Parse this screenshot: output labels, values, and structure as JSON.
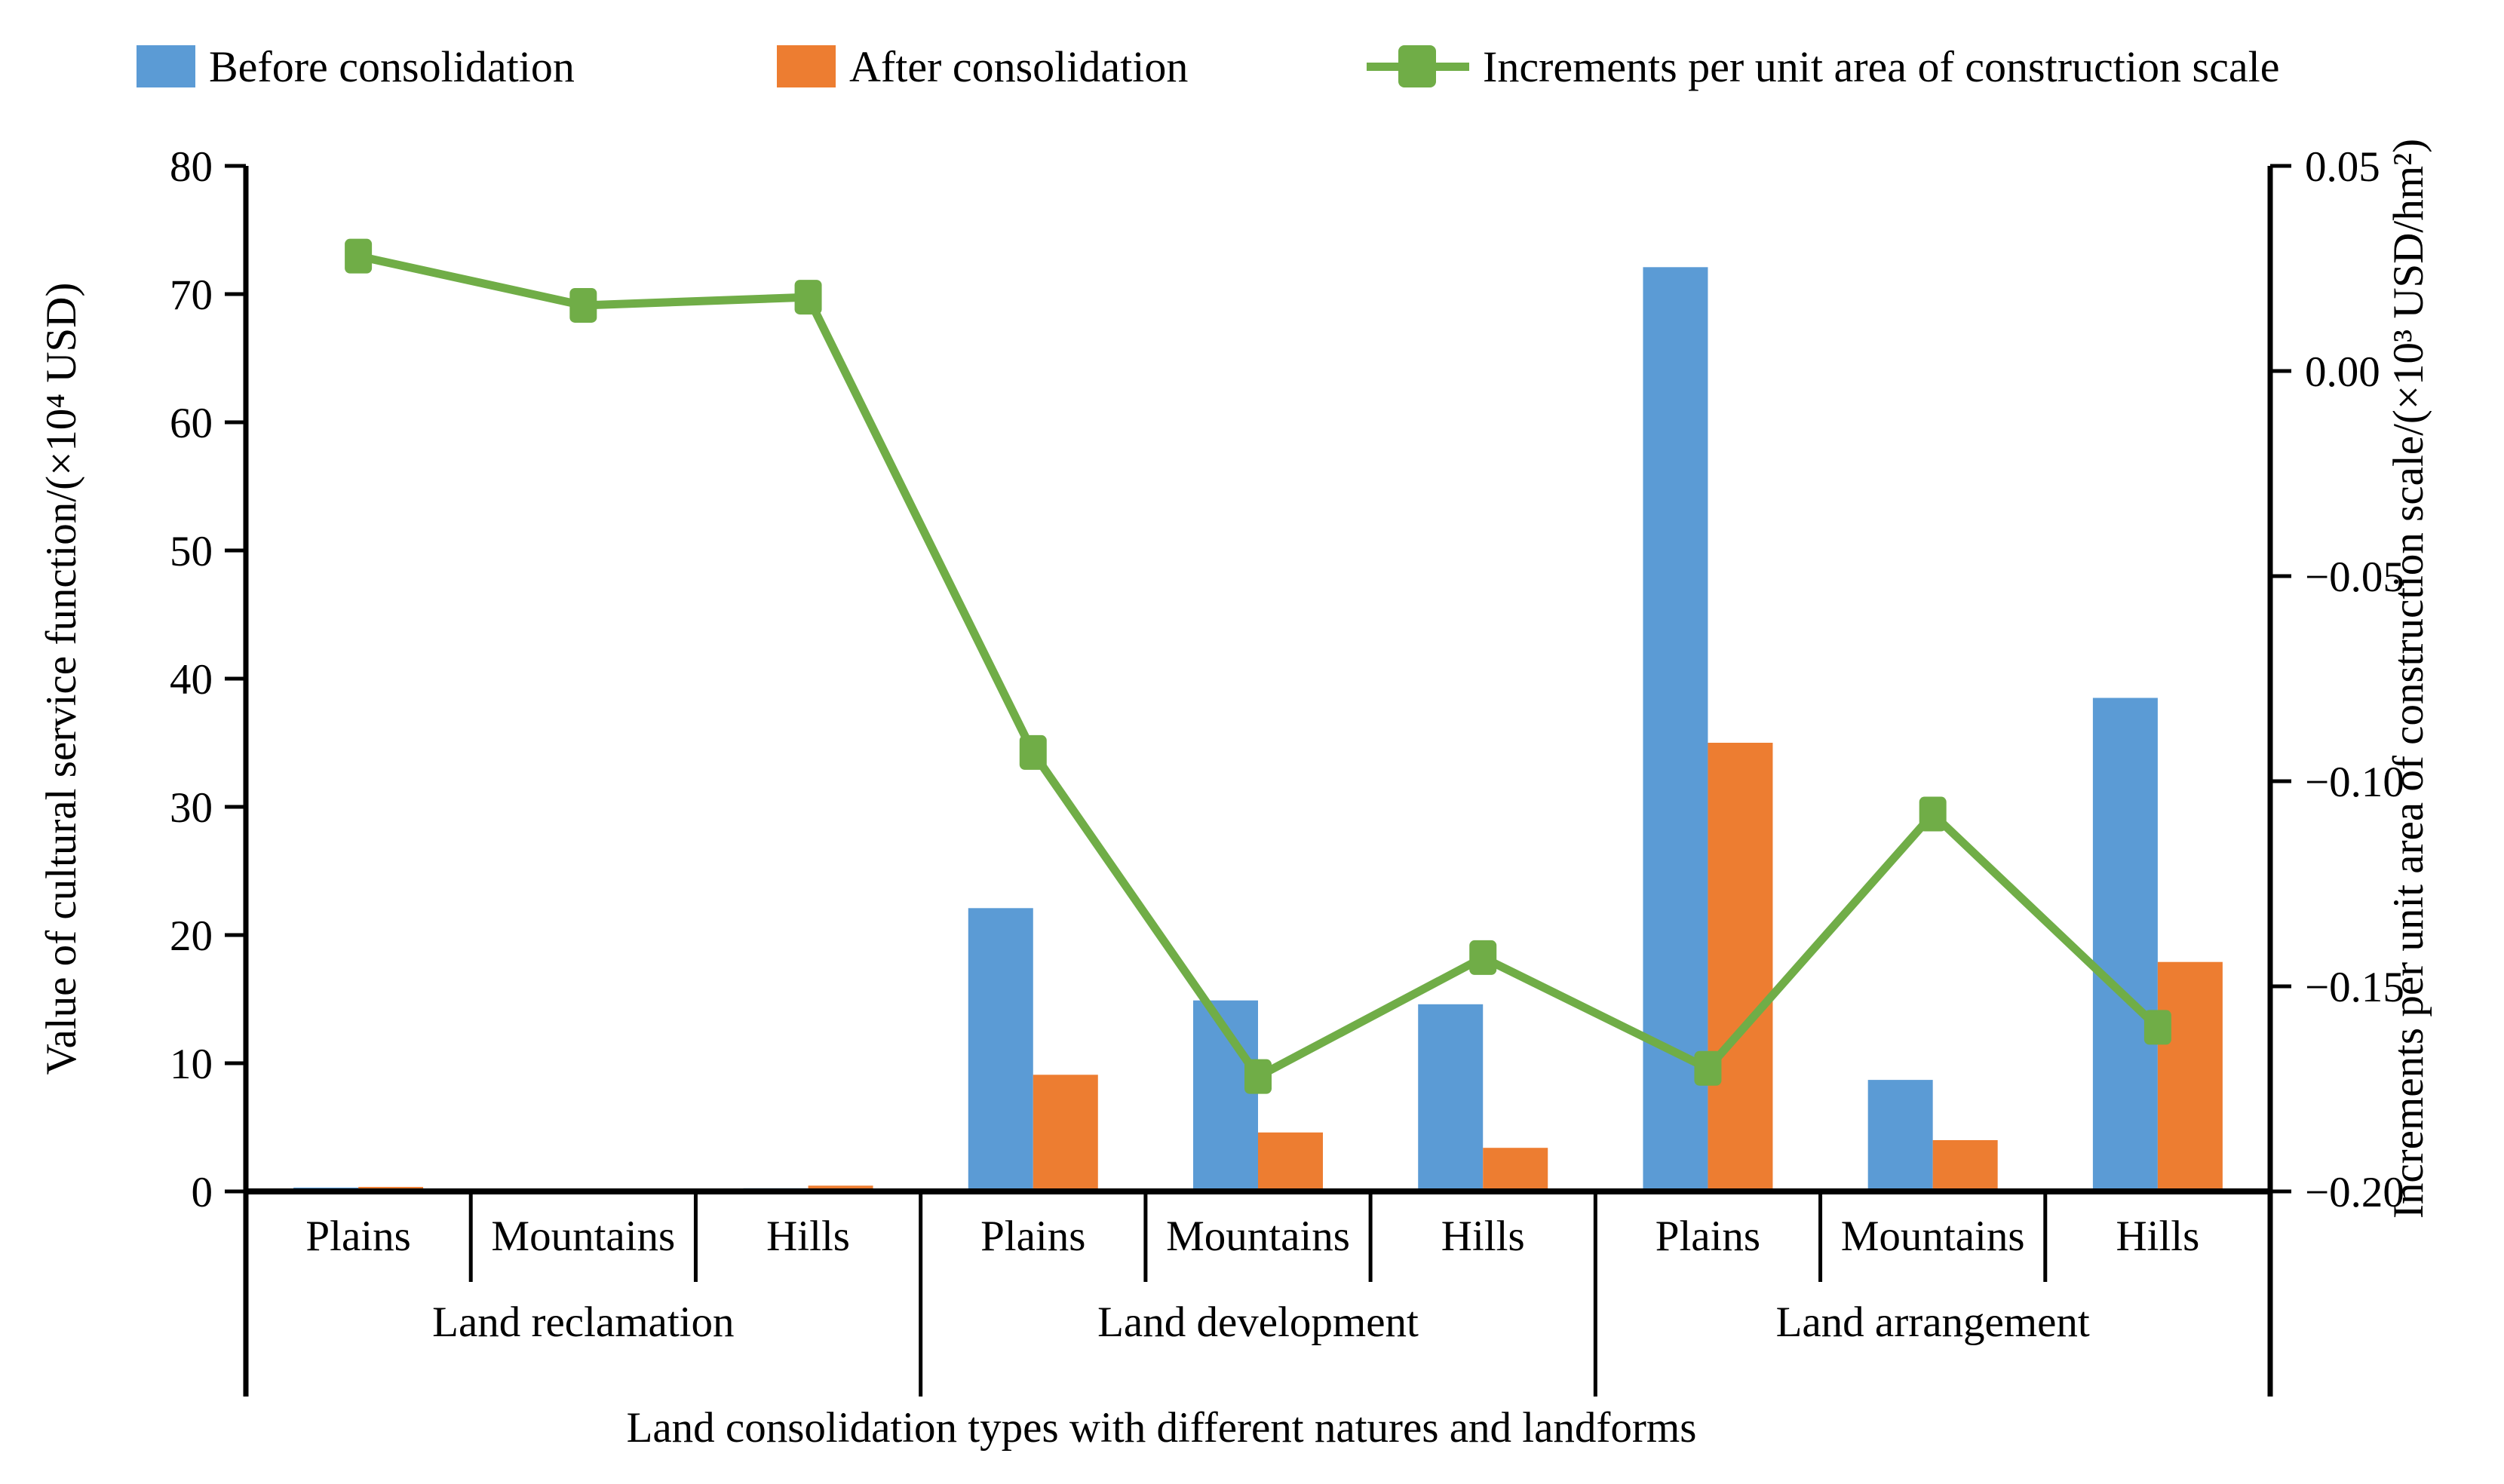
{
  "figure": {
    "background": "#ffffff",
    "accent_colors": {
      "blue": "#5B9BD5",
      "orange": "#ED7D31",
      "green": "#70AD47",
      "axis": "#000000"
    }
  },
  "legend": {
    "items": [
      {
        "label": "Before consolidation",
        "color": "#5B9BD5",
        "marker": "square"
      },
      {
        "label": "After consolidation",
        "color": "#ED7D31",
        "marker": "square"
      },
      {
        "label": "Increments per unit area of construction scale",
        "color": "#70AD47",
        "marker": "line-square"
      }
    ]
  },
  "chart_data": {
    "type": "bar+line",
    "groups": [
      {
        "label": "Land reclamation",
        "categories": [
          "Plains",
          "Mountains",
          "Hills"
        ]
      },
      {
        "label": "Land development",
        "categories": [
          "Plains",
          "Mountains",
          "Hills"
        ]
      },
      {
        "label": "Land arrangement",
        "categories": [
          "Plains",
          "Mountains",
          "Hills"
        ]
      }
    ],
    "series": [
      {
        "name": "Before consolidation",
        "type": "bar",
        "axis": "left",
        "color": "#5B9BD5",
        "values": [
          0.3,
          0.2,
          0.25,
          22.1,
          14.9,
          14.6,
          72.1,
          8.7,
          38.5
        ]
      },
      {
        "name": "After consolidation",
        "type": "bar",
        "axis": "left",
        "color": "#ED7D31",
        "values": [
          0.35,
          0.2,
          0.45,
          9.1,
          4.6,
          3.4,
          35.0,
          4.0,
          17.9
        ]
      },
      {
        "name": "Increments per unit area of construction scale",
        "type": "line",
        "axis": "right",
        "color": "#70AD47",
        "values": [
          0.028,
          0.016,
          0.018,
          -0.093,
          -0.172,
          -0.143,
          -0.17,
          -0.108,
          -0.16
        ]
      }
    ],
    "left_axis": {
      "title": "Value of cultural service function/(×10⁴ USD)",
      "range": [
        0,
        80
      ],
      "ticks": [
        {
          "value": 0,
          "label": "0"
        },
        {
          "value": 10,
          "label": "10"
        },
        {
          "value": 20,
          "label": "20"
        },
        {
          "value": 30,
          "label": "30"
        },
        {
          "value": 40,
          "label": "40"
        },
        {
          "value": 50,
          "label": "50"
        },
        {
          "value": 60,
          "label": "60"
        },
        {
          "value": 70,
          "label": "70"
        },
        {
          "value": 80,
          "label": "80"
        }
      ]
    },
    "right_axis": {
      "title": "Increments per unit area of construction scale/(×10³ USD/hm²)",
      "range": [
        -0.2,
        0.05
      ],
      "ticks": [
        {
          "value": 0.05,
          "label": "0.05"
        },
        {
          "value": 0.0,
          "label": "0.00"
        },
        {
          "value": -0.05,
          "label": "−0.05"
        },
        {
          "value": -0.1,
          "label": "−0.10"
        },
        {
          "value": -0.15,
          "label": "−0.15"
        },
        {
          "value": -0.2,
          "label": "−0.20"
        }
      ]
    },
    "x_axis": {
      "title": "Land consolidation types with different natures and landforms"
    }
  }
}
